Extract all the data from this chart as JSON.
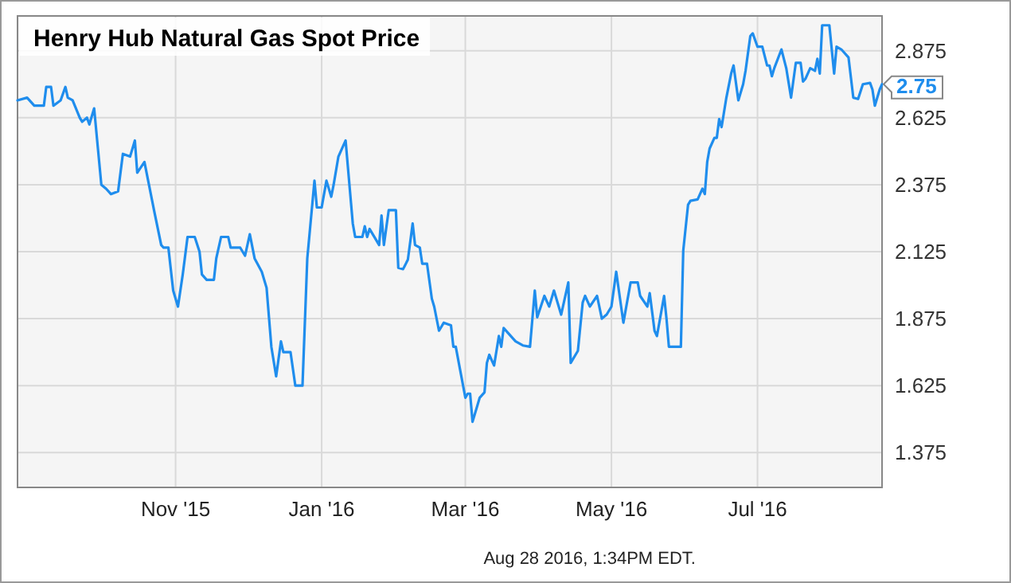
{
  "chart_data": {
    "type": "line",
    "title": "Henry Hub Natural Gas Spot Price",
    "x": [
      "2015-08-27",
      "2015-08-31",
      "2015-09-03",
      "2015-09-07",
      "2015-09-08",
      "2015-09-10",
      "2015-09-11",
      "2015-09-14",
      "2015-09-16",
      "2015-09-17",
      "2015-09-19",
      "2015-09-22",
      "2015-09-23",
      "2015-09-25",
      "2015-09-26",
      "2015-09-28",
      "2015-10-01",
      "2015-10-03",
      "2015-10-05",
      "2015-10-08",
      "2015-10-10",
      "2015-10-13",
      "2015-10-15",
      "2015-10-16",
      "2015-10-19",
      "2015-10-21",
      "2015-10-23",
      "2015-10-26",
      "2015-10-27",
      "2015-10-29",
      "2015-10-31",
      "2015-11-02",
      "2015-11-04",
      "2015-11-06",
      "2015-11-09",
      "2015-11-11",
      "2015-11-12",
      "2015-11-14",
      "2015-11-17",
      "2015-11-18",
      "2015-11-20",
      "2015-11-23",
      "2015-11-24",
      "2015-11-28",
      "2015-11-30",
      "2015-12-02",
      "2015-12-04",
      "2015-12-07",
      "2015-12-09",
      "2015-12-11",
      "2015-12-13",
      "2015-12-15",
      "2015-12-16",
      "2015-12-19",
      "2015-12-21",
      "2015-12-24",
      "2015-12-26",
      "2015-12-29",
      "2015-12-30",
      "2016-01-01",
      "2016-01-03",
      "2016-01-05",
      "2016-01-06",
      "2016-01-08",
      "2016-01-11",
      "2016-01-14",
      "2016-01-15",
      "2016-01-18",
      "2016-01-19",
      "2016-01-20",
      "2016-01-21",
      "2016-01-25",
      "2016-01-26",
      "2016-01-27",
      "2016-01-29",
      "2016-02-01",
      "2016-02-02",
      "2016-02-04",
      "2016-02-06",
      "2016-02-08",
      "2016-02-09",
      "2016-02-11",
      "2016-02-12",
      "2016-02-14",
      "2016-02-16",
      "2016-02-17",
      "2016-02-19",
      "2016-02-21",
      "2016-02-24",
      "2016-02-25",
      "2016-02-26",
      "2016-03-01",
      "2016-03-02",
      "2016-03-03",
      "2016-03-04",
      "2016-03-07",
      "2016-03-09",
      "2016-03-10",
      "2016-03-11",
      "2016-03-13",
      "2016-03-15",
      "2016-03-16",
      "2016-03-17",
      "2016-03-21",
      "2016-03-22",
      "2016-03-25",
      "2016-03-28",
      "2016-03-30",
      "2016-03-31",
      "2016-04-03",
      "2016-04-05",
      "2016-04-07",
      "2016-04-10",
      "2016-04-13",
      "2016-04-14",
      "2016-04-17",
      "2016-04-19",
      "2016-04-20",
      "2016-04-22",
      "2016-04-25",
      "2016-04-27",
      "2016-04-29",
      "2016-05-01",
      "2016-05-03",
      "2016-05-06",
      "2016-05-09",
      "2016-05-12",
      "2016-05-13",
      "2016-05-16",
      "2016-05-17",
      "2016-05-19",
      "2016-05-20",
      "2016-05-23",
      "2016-05-24",
      "2016-05-25",
      "2016-05-30",
      "2016-05-31",
      "2016-06-02",
      "2016-06-03",
      "2016-06-06",
      "2016-06-08",
      "2016-06-09",
      "2016-06-10",
      "2016-06-11",
      "2016-06-13",
      "2016-06-14",
      "2016-06-15",
      "2016-06-16",
      "2016-06-18",
      "2016-06-20",
      "2016-06-21",
      "2016-06-23",
      "2016-06-25",
      "2016-06-26",
      "2016-06-28",
      "2016-06-29",
      "2016-07-01",
      "2016-07-03",
      "2016-07-05",
      "2016-07-06",
      "2016-07-07",
      "2016-07-08",
      "2016-07-11",
      "2016-07-13",
      "2016-07-15",
      "2016-07-17",
      "2016-07-19",
      "2016-07-20",
      "2016-07-21",
      "2016-07-23",
      "2016-07-25",
      "2016-07-26",
      "2016-07-27",
      "2016-07-28",
      "2016-07-31",
      "2016-08-02",
      "2016-08-03",
      "2016-08-05",
      "2016-08-08",
      "2016-08-10",
      "2016-08-12",
      "2016-08-14",
      "2016-08-17",
      "2016-08-18",
      "2016-08-19",
      "2016-08-21",
      "2016-08-22"
    ],
    "series": [
      {
        "color": "#1f8ded",
        "values": [
          2.69,
          2.7,
          2.67,
          2.67,
          2.74,
          2.74,
          2.67,
          2.69,
          2.74,
          2.7,
          2.69,
          2.625,
          2.61,
          2.625,
          2.6,
          2.66,
          2.375,
          2.36,
          2.34,
          2.35,
          2.49,
          2.48,
          2.54,
          2.42,
          2.46,
          2.37,
          2.28,
          2.15,
          2.14,
          2.14,
          1.98,
          1.92,
          2.04,
          2.18,
          2.18,
          2.125,
          2.04,
          2.02,
          2.02,
          2.1,
          2.18,
          2.18,
          2.14,
          2.14,
          2.11,
          2.19,
          2.1,
          2.05,
          1.99,
          1.77,
          1.66,
          1.79,
          1.75,
          1.75,
          1.625,
          1.625,
          2.1,
          2.39,
          2.29,
          2.29,
          2.39,
          2.33,
          2.375,
          2.48,
          2.54,
          2.23,
          2.18,
          2.18,
          2.22,
          2.18,
          2.21,
          2.15,
          2.26,
          2.15,
          2.28,
          2.28,
          2.065,
          2.06,
          2.095,
          2.23,
          2.15,
          2.14,
          2.08,
          2.08,
          1.95,
          1.92,
          1.83,
          1.86,
          1.85,
          1.77,
          1.77,
          1.58,
          1.595,
          1.595,
          1.49,
          1.58,
          1.6,
          1.71,
          1.74,
          1.7,
          1.81,
          1.77,
          1.84,
          1.8,
          1.79,
          1.775,
          1.77,
          1.98,
          1.88,
          1.96,
          1.92,
          1.98,
          1.89,
          2.01,
          1.71,
          1.755,
          1.935,
          1.96,
          1.92,
          1.96,
          1.875,
          1.89,
          1.92,
          2.05,
          1.86,
          2.01,
          2.01,
          1.96,
          1.92,
          1.97,
          1.83,
          1.81,
          1.96,
          1.875,
          1.77,
          1.77,
          2.13,
          2.3,
          2.315,
          2.32,
          2.36,
          2.34,
          2.46,
          2.51,
          2.55,
          2.55,
          2.62,
          2.59,
          2.7,
          2.79,
          2.82,
          2.69,
          2.75,
          2.8,
          2.93,
          2.94,
          2.89,
          2.89,
          2.82,
          2.82,
          2.78,
          2.81,
          2.88,
          2.81,
          2.7,
          2.83,
          2.83,
          2.76,
          2.77,
          2.81,
          2.8,
          2.845,
          2.79,
          2.97,
          2.97,
          2.79,
          2.89,
          2.88,
          2.85,
          2.7,
          2.695,
          2.75,
          2.755,
          2.73,
          2.67,
          2.73,
          2.75
        ]
      }
    ],
    "xlim": [
      "2015-08-27",
      "2016-08-22"
    ],
    "xticks": [
      {
        "value": "2015-11-01",
        "label": "Nov '15"
      },
      {
        "value": "2016-01-01",
        "label": "Jan '16"
      },
      {
        "value": "2016-03-01",
        "label": "Mar '16"
      },
      {
        "value": "2016-05-01",
        "label": "May '16"
      },
      {
        "value": "2016-07-01",
        "label": "Jul '16"
      }
    ],
    "ylim": [
      1.245,
      3.005
    ],
    "yticks": [
      1.375,
      1.625,
      1.875,
      2.125,
      2.375,
      2.625,
      2.875
    ],
    "grid": true,
    "annotations": [
      {
        "text": "2.75",
        "x": "2016-08-22",
        "y": 2.75
      },
      "Aug 28 2016, 1:34PM EDT."
    ]
  }
}
